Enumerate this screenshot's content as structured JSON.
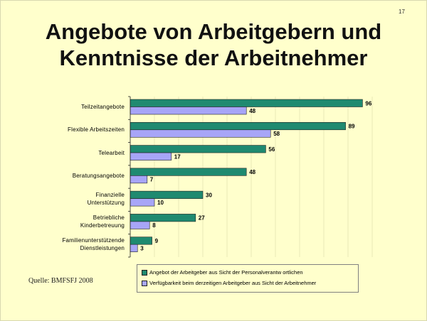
{
  "page_number": "17",
  "title_lines": [
    "Angebote von Arbeitgebern und",
    "Kenntnisse der Arbeitnehmer"
  ],
  "source": "Quelle: BMFSFJ 2008",
  "colors": {
    "background": "#FFFFCC",
    "series_1": "#1F8A70",
    "series_2": "#A7A5F7"
  },
  "chart_data": {
    "type": "bar",
    "orientation": "horizontal",
    "categories": [
      [
        "Teilzeitangebote"
      ],
      [
        "Flexible Arbeitszeiten"
      ],
      [
        "Telearbeit"
      ],
      [
        "Beratungsangebote"
      ],
      [
        "Finanzielle",
        "Unterstützung"
      ],
      [
        "Betriebliche",
        "Kinderbetreuung"
      ],
      [
        "Familienunterstützende",
        "Dienstleistungen"
      ]
    ],
    "series": [
      {
        "name": "Angebot der Arbeitgeber aus Sicht der Personalverantw ortlichen",
        "values": [
          96,
          89,
          56,
          48,
          30,
          27,
          9
        ]
      },
      {
        "name": "Verfügbarkeit beim derzeitigen Arbeitgeber aus Sicht der Arbeitnehmer",
        "values": [
          48,
          58,
          17,
          7,
          10,
          8,
          3
        ]
      }
    ],
    "xlim": [
      0,
      100
    ],
    "grid": true,
    "legend_position": "bottom"
  }
}
